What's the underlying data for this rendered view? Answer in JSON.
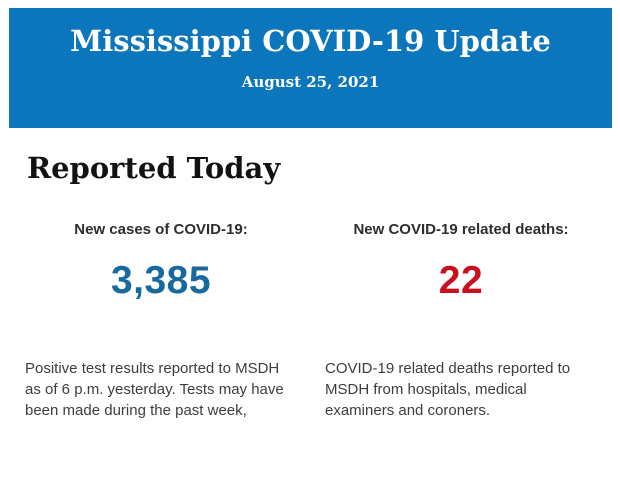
{
  "header": {
    "title": "Mississippi COVID-19 Update",
    "date": "August 25, 2021",
    "background_color": "#0B76BC",
    "text_color": "#FFFFFF"
  },
  "main": {
    "section_title": "Reported Today",
    "stats": [
      {
        "id": "new-cases",
        "label": "New cases of COVID-19:",
        "value": "3,385",
        "value_color": "#17699E",
        "description": "Positive test results reported to MSDH as of 6 p.m. yesterday. Tests may have been made during the past week,"
      },
      {
        "id": "new-deaths",
        "label": "New COVID-19 related deaths:",
        "value": "22",
        "value_color": "#C9111E",
        "description": "COVID-19 related deaths reported to MSDH from hospitals, medical examiners and coroners."
      }
    ]
  }
}
